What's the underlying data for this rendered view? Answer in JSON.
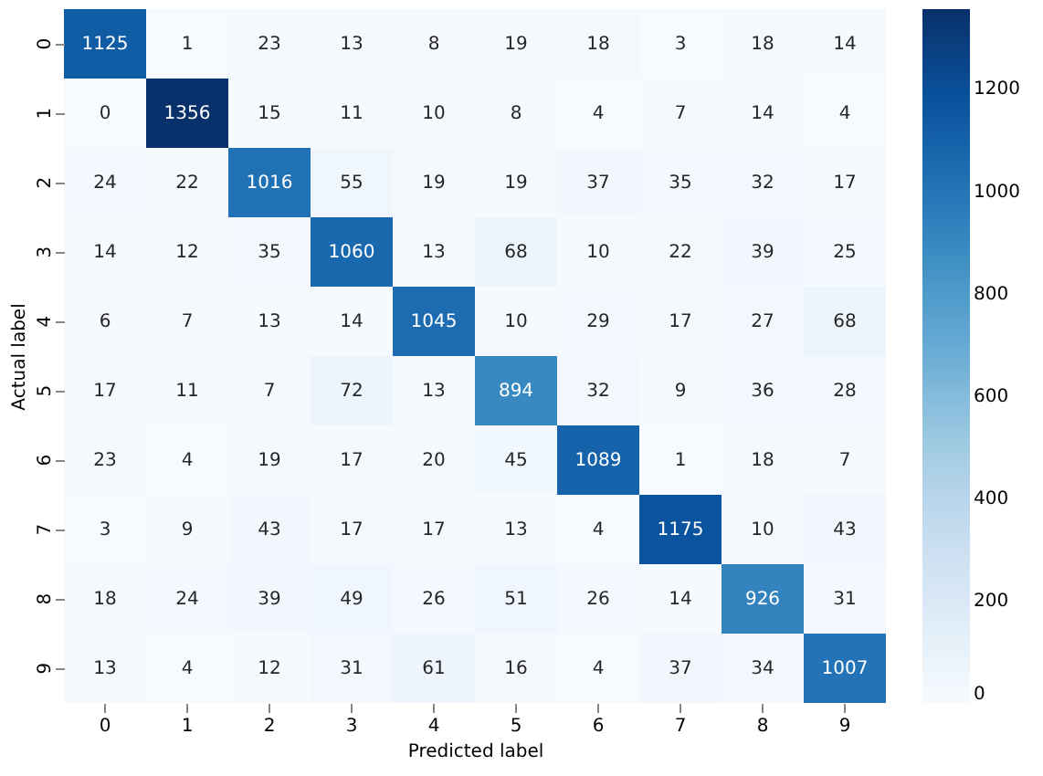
{
  "chart_data": {
    "type": "heatmap",
    "xlabel": "Predicted label",
    "ylabel": "Actual label",
    "categories": [
      "0",
      "1",
      "2",
      "3",
      "4",
      "5",
      "6",
      "7",
      "8",
      "9"
    ],
    "y_categories": [
      "0",
      "1",
      "2",
      "3",
      "4",
      "5",
      "6",
      "7",
      "8",
      "9"
    ],
    "cells": [
      [
        1125,
        1,
        23,
        13,
        8,
        19,
        18,
        3,
        18,
        14
      ],
      [
        0,
        1356,
        15,
        11,
        10,
        8,
        4,
        7,
        14,
        4
      ],
      [
        24,
        22,
        1016,
        55,
        19,
        19,
        37,
        35,
        32,
        17
      ],
      [
        14,
        12,
        35,
        1060,
        13,
        68,
        10,
        22,
        39,
        25
      ],
      [
        6,
        7,
        13,
        14,
        1045,
        10,
        29,
        17,
        27,
        68
      ],
      [
        17,
        11,
        7,
        72,
        13,
        894,
        32,
        9,
        36,
        28
      ],
      [
        23,
        4,
        19,
        17,
        20,
        45,
        1089,
        1,
        18,
        7
      ],
      [
        3,
        9,
        43,
        17,
        17,
        13,
        4,
        1175,
        10,
        43
      ],
      [
        18,
        24,
        39,
        49,
        26,
        51,
        26,
        14,
        926,
        31
      ],
      [
        13,
        4,
        12,
        31,
        61,
        16,
        4,
        37,
        34,
        1007
      ]
    ],
    "clim": [
      0,
      1356
    ],
    "cticks": [
      0,
      200,
      400,
      600,
      800,
      1000,
      1200
    ],
    "data_labels": true
  }
}
